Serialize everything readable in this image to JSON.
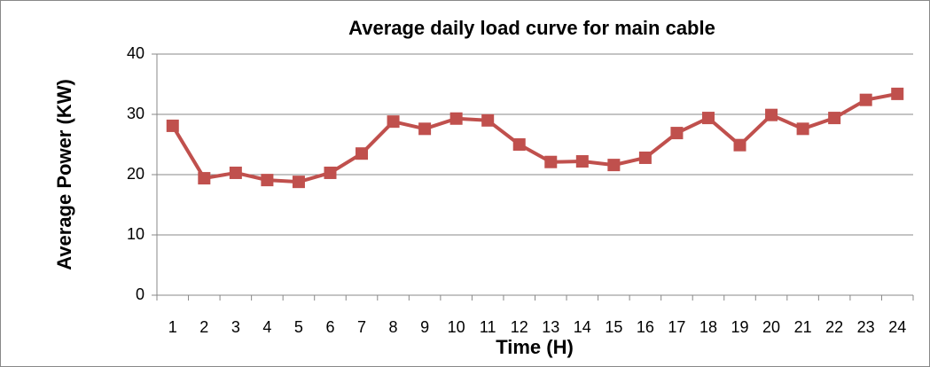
{
  "chart_data": {
    "type": "line",
    "title": "Average daily load curve for main cable",
    "x_label": "Time (H)",
    "y_label": "Average Power (KW)",
    "categories": [
      "1",
      "2",
      "3",
      "4",
      "5",
      "6",
      "7",
      "8",
      "9",
      "10",
      "11",
      "12",
      "13",
      "14",
      "15",
      "16",
      "17",
      "18",
      "19",
      "20",
      "21",
      "22",
      "23",
      "24"
    ],
    "series": [
      {
        "name": "Average power",
        "color": "#c0504d",
        "values": [
          28.1,
          19.4,
          20.3,
          19.1,
          18.8,
          20.3,
          23.5,
          28.8,
          27.6,
          29.3,
          29.0,
          25.0,
          22.1,
          22.2,
          21.6,
          22.8,
          26.9,
          29.4,
          24.9,
          29.9,
          27.6,
          29.4,
          32.4,
          33.4
        ]
      }
    ],
    "ylim": [
      0,
      40
    ],
    "yticks": [
      0,
      10,
      20,
      30,
      40
    ],
    "grid": true
  }
}
